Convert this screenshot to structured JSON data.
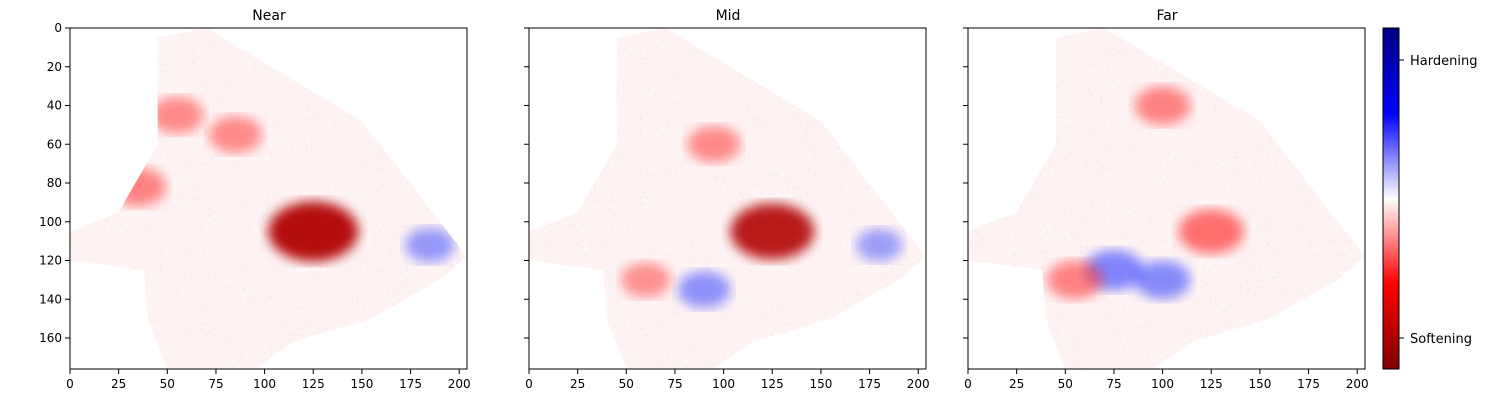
{
  "chart_data": [
    {
      "type": "heatmap",
      "title": "Near",
      "xlabel": "",
      "ylabel": "",
      "xlim": [
        0,
        204
      ],
      "ylim": [
        176,
        0
      ],
      "xticks": [
        "0",
        "25",
        "50",
        "75",
        "100",
        "125",
        "150",
        "175",
        "200"
      ],
      "yticks": [
        "0",
        "20",
        "40",
        "60",
        "80",
        "100",
        "120",
        "140",
        "160"
      ],
      "hotspots": [
        {
          "x": 125,
          "y": 105,
          "value": -0.95
        },
        {
          "x": 55,
          "y": 45,
          "value": -0.35
        },
        {
          "x": 85,
          "y": 55,
          "value": -0.35
        },
        {
          "x": 35,
          "y": 82,
          "value": -0.4
        },
        {
          "x": 185,
          "y": 112,
          "value": 0.3
        }
      ]
    },
    {
      "type": "heatmap",
      "title": "Mid",
      "xlabel": "",
      "ylabel": "",
      "xlim": [
        0,
        204
      ],
      "ylim": [
        176,
        0
      ],
      "xticks": [
        "0",
        "25",
        "50",
        "75",
        "100",
        "125",
        "150",
        "175",
        "200"
      ],
      "yticks": [],
      "hotspots": [
        {
          "x": 125,
          "y": 105,
          "value": -0.85
        },
        {
          "x": 95,
          "y": 60,
          "value": -0.35
        },
        {
          "x": 60,
          "y": 130,
          "value": -0.3
        },
        {
          "x": 90,
          "y": 135,
          "value": 0.35
        },
        {
          "x": 180,
          "y": 112,
          "value": 0.25
        }
      ]
    },
    {
      "type": "heatmap",
      "title": "Far",
      "xlabel": "",
      "ylabel": "",
      "xlim": [
        0,
        204
      ],
      "ylim": [
        176,
        0
      ],
      "xticks": [
        "0",
        "25",
        "50",
        "75",
        "100",
        "125",
        "150",
        "175",
        "200"
      ],
      "yticks": [],
      "hotspots": [
        {
          "x": 125,
          "y": 105,
          "value": -0.55
        },
        {
          "x": 100,
          "y": 40,
          "value": -0.4
        },
        {
          "x": 75,
          "y": 125,
          "value": 0.45
        },
        {
          "x": 100,
          "y": 130,
          "value": 0.4
        },
        {
          "x": 55,
          "y": 130,
          "value": -0.4
        }
      ]
    }
  ],
  "colorbar": {
    "colormap": "seismic",
    "colors": [
      "#800000",
      "#ff0000",
      "#ffffff",
      "#0000ff",
      "#000080"
    ],
    "labels": [
      {
        "text": "Hardening",
        "value": 0.8
      },
      {
        "text": "Softening",
        "value": -0.8
      }
    ]
  }
}
